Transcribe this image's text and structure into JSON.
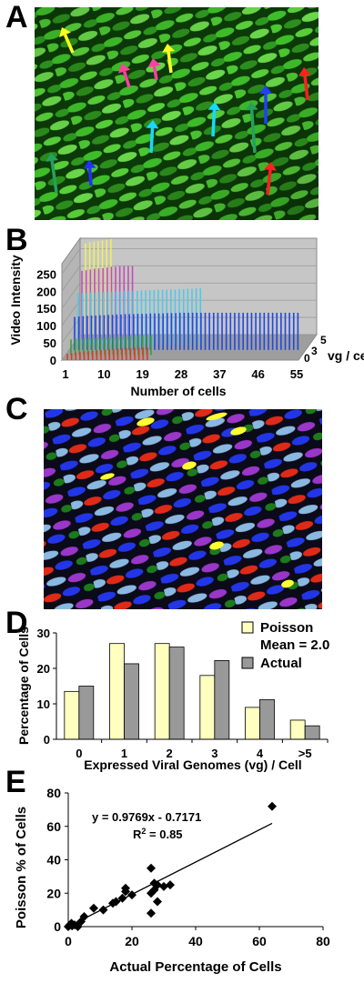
{
  "figure": {
    "panels": [
      {
        "letter": "A"
      },
      {
        "letter": "B"
      },
      {
        "letter": "C"
      },
      {
        "letter": "D"
      },
      {
        "letter": "E"
      }
    ]
  },
  "panel_a": {
    "arrow_colors": [
      "#ffff22",
      "#ff3fa0",
      "#ff3fa0",
      "#ffff22",
      "#ff2020",
      "#2040ff",
      "#18d8ff",
      "#18d8ff",
      "#26a060",
      "#26a060",
      "#2030ff",
      "#ff2020"
    ]
  },
  "chart_data": [
    {
      "type": "bar",
      "panel": "B",
      "ylabel": "Video Intensity",
      "xlabel": "Number of cells",
      "zlabel": "vg / cell",
      "x_ticks": [
        1,
        10,
        19,
        28,
        37,
        46,
        55
      ],
      "y_ticks": [
        0,
        50,
        100,
        150,
        200,
        250
      ],
      "z_ticks": [
        0,
        3,
        5
      ],
      "ylim": [
        0,
        280
      ],
      "series": [
        {
          "vg": 5,
          "color": "#f0f060",
          "values": [
            265,
            268,
            270,
            272,
            274,
            276,
            278
          ]
        },
        {
          "vg": 4,
          "color": "#c050b0",
          "values": [
            200,
            202,
            204,
            206,
            207,
            208,
            210,
            212,
            212,
            214,
            214,
            214,
            214
          ]
        },
        {
          "vg": 3,
          "color": "#4fc8e8",
          "values": [
            150,
            150,
            151,
            152,
            152,
            153,
            153,
            154,
            154,
            155,
            155,
            156,
            156,
            157,
            157,
            158,
            158,
            159,
            159,
            160,
            160,
            160,
            161,
            161,
            162,
            162,
            163,
            163,
            164,
            164
          ]
        },
        {
          "vg": 2,
          "color": "#2048e0",
          "values": [
            96,
            97,
            98,
            99,
            100,
            100,
            101,
            101,
            102,
            102,
            103,
            103,
            104,
            104,
            104,
            105,
            105,
            105,
            106,
            106,
            106,
            106,
            107,
            107,
            107,
            108,
            108,
            108,
            108,
            108,
            108,
            108,
            108,
            108,
            108,
            108,
            108,
            108,
            108,
            108,
            108,
            108,
            108,
            108,
            108,
            108,
            108,
            108,
            108,
            108,
            108,
            108,
            108,
            108
          ]
        },
        {
          "vg": 1,
          "color": "#30a040",
          "values": [
            45,
            46,
            47,
            48,
            49,
            50,
            50,
            51,
            51,
            52,
            52,
            53,
            53,
            54,
            54,
            55,
            55,
            56,
            56,
            57
          ]
        },
        {
          "vg": 0,
          "color": "#e03a20",
          "values": [
            18,
            20,
            22,
            24,
            25,
            26,
            27,
            28,
            29,
            30,
            31,
            32,
            33,
            34,
            35,
            35,
            36,
            36,
            37,
            37
          ]
        }
      ]
    },
    {
      "type": "bar",
      "panel": "D",
      "categories": [
        "0",
        "1",
        "2",
        "3",
        "4",
        ">5"
      ],
      "series": [
        {
          "name": "Poisson\nMean = 2.0",
          "color": "#ffffc0",
          "values": [
            13.5,
            27,
            27,
            18,
            9,
            5.4
          ]
        },
        {
          "name": "Actual",
          "color": "#999999",
          "values": [
            15,
            21.3,
            26,
            22.2,
            11.2,
            3.8
          ]
        }
      ],
      "xlabel": "Expressed Viral Genomes (vg) / Cell",
      "ylabel": "Percentage of Cells",
      "ylim": [
        0,
        30
      ],
      "y_ticks": [
        0,
        10,
        20,
        30
      ],
      "legend_position": "right"
    },
    {
      "type": "scatter",
      "panel": "E",
      "x": [
        0,
        0.5,
        1,
        1.2,
        2,
        3,
        4,
        5,
        8,
        11,
        14,
        15,
        17,
        18,
        18,
        20,
        26,
        26,
        26,
        27,
        27,
        28,
        28,
        30,
        32,
        64
      ],
      "y": [
        0,
        1,
        2,
        0.5,
        1,
        0,
        3,
        6,
        11,
        10,
        14,
        15,
        17,
        21,
        23,
        19,
        35,
        8,
        20,
        22,
        26,
        15,
        25,
        24,
        25,
        72
      ],
      "trendline": {
        "slope": 0.9769,
        "intercept": -0.7171
      },
      "equation": "y = 0.9769x - 0.7171",
      "r2": "R",
      "r2_sup": "2",
      "r2_value": " = 0.85",
      "xlabel": "Actual Percentage of Cells",
      "ylabel": "Poisson % of Cells",
      "xlim": [
        0,
        80
      ],
      "ylim": [
        0,
        80
      ],
      "x_ticks": [
        0,
        20,
        40,
        60,
        80
      ],
      "y_ticks": [
        0,
        20,
        40,
        60,
        80
      ]
    }
  ]
}
